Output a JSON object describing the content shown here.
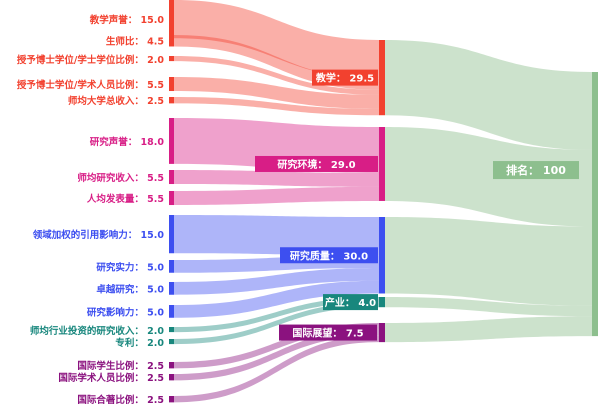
{
  "sources": [
    {
      "id": "s0",
      "label": "教学声誉：",
      "value": 15.0,
      "target": "t0",
      "color": "#f2412f"
    },
    {
      "id": "s1",
      "label": "生师比：",
      "value": 4.5,
      "target": "t0",
      "color": "#f2412f"
    },
    {
      "id": "s2",
      "label": "授予博士学位/学士学位比例：",
      "value": 2.0,
      "target": "t0",
      "color": "#f2412f"
    },
    {
      "id": "s3",
      "label": "授予博士学位/学术人员比例：",
      "value": 5.5,
      "target": "t0",
      "color": "#f2412f"
    },
    {
      "id": "s4",
      "label": "师均大学总收入：",
      "value": 2.5,
      "target": "t0",
      "color": "#f2412f"
    },
    {
      "id": "s5",
      "label": "研究声誉：",
      "value": 18.0,
      "target": "t1",
      "color": "#d81e86"
    },
    {
      "id": "s6",
      "label": "师均研究收入：",
      "value": 5.5,
      "target": "t1",
      "color": "#d81e86"
    },
    {
      "id": "s7",
      "label": "人均发表量：",
      "value": 5.5,
      "target": "t1",
      "color": "#d81e86"
    },
    {
      "id": "s8",
      "label": "领域加权的引用影响力：",
      "value": 15.0,
      "target": "t2",
      "color": "#3d4ff0"
    },
    {
      "id": "s9",
      "label": "研究实力：",
      "value": 5.0,
      "target": "t2",
      "color": "#3d4ff0"
    },
    {
      "id": "s10",
      "label": "卓越研究：",
      "value": 5.0,
      "target": "t2",
      "color": "#3d4ff0"
    },
    {
      "id": "s11",
      "label": "研究影响力：",
      "value": 5.0,
      "target": "t2",
      "color": "#3d4ff0"
    },
    {
      "id": "s12",
      "label": "师均行业投资的研究收入：",
      "value": 2.0,
      "target": "t3",
      "color": "#18877d"
    },
    {
      "id": "s13",
      "label": "专利：",
      "value": 2.0,
      "target": "t3",
      "color": "#18877d"
    },
    {
      "id": "s14",
      "label": "国际学生比例：",
      "value": 2.5,
      "target": "t4",
      "color": "#8b127f"
    },
    {
      "id": "s15",
      "label": "国际学术人员比例：",
      "value": 2.5,
      "target": "t4",
      "color": "#8b127f"
    },
    {
      "id": "s16",
      "label": "国际合著比例：",
      "value": 2.5,
      "target": "t4",
      "color": "#8b127f"
    }
  ],
  "categories": [
    {
      "id": "t0",
      "label": "教学：",
      "value": 29.5,
      "color": "#f2412f"
    },
    {
      "id": "t1",
      "label": "研究环境：",
      "value": 29.0,
      "color": "#d81e86"
    },
    {
      "id": "t2",
      "label": "研究质量：",
      "value": 30.0,
      "color": "#3d4ff0"
    },
    {
      "id": "t3",
      "label": "产业：",
      "value": 4.0,
      "color": "#18877d"
    },
    {
      "id": "t4",
      "label": "国际展望：",
      "value": 7.5,
      "color": "#8b127f"
    }
  ],
  "total": {
    "label": "排名：",
    "value": 100,
    "color": "#8dbf8e"
  }
}
